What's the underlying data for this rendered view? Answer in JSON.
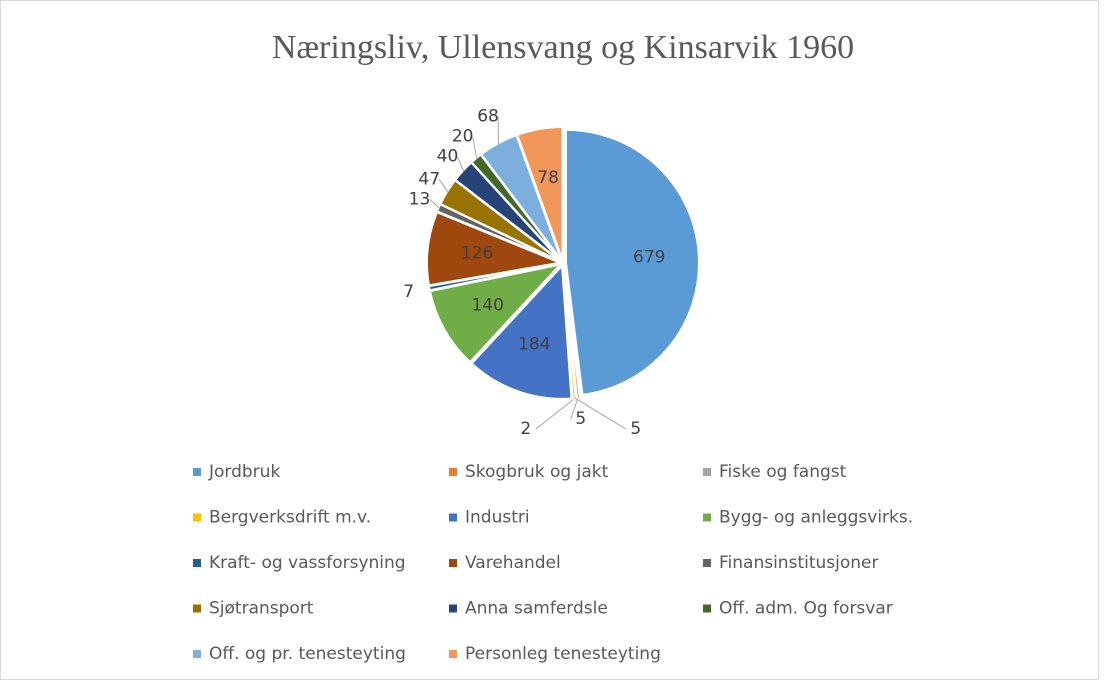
{
  "chart_data": {
    "type": "pie",
    "title": "Næringsliv, Ullensvang og Kinsarvik 1960",
    "categories": [
      "Jordbruk",
      "Skogbruk og jakt",
      "Fiske og fangst",
      "Bergverksdrift m.v.",
      "Industri",
      "Bygg- og anleggsvirks.",
      "Kraft- og vassforsyning",
      "Varehandel",
      "Finansinstitusjoner",
      "Sjøtransport",
      "Anna samferdsle",
      "Off. adm. Og forsvar",
      "Off. og pr. tenesteyting",
      "Personleg tenesteyting"
    ],
    "values": [
      679,
      5,
      2,
      5,
      184,
      140,
      7,
      126,
      13,
      47,
      40,
      20,
      68,
      78
    ],
    "colors": [
      "#5b9bd5",
      "#ed7d31",
      "#a5a5a5",
      "#ffc000",
      "#4472c4",
      "#70ad47",
      "#255e91",
      "#9e480e",
      "#636363",
      "#997300",
      "#264478",
      "#43682b",
      "#7cafdd",
      "#f1975a"
    ],
    "legend": "bottom"
  }
}
